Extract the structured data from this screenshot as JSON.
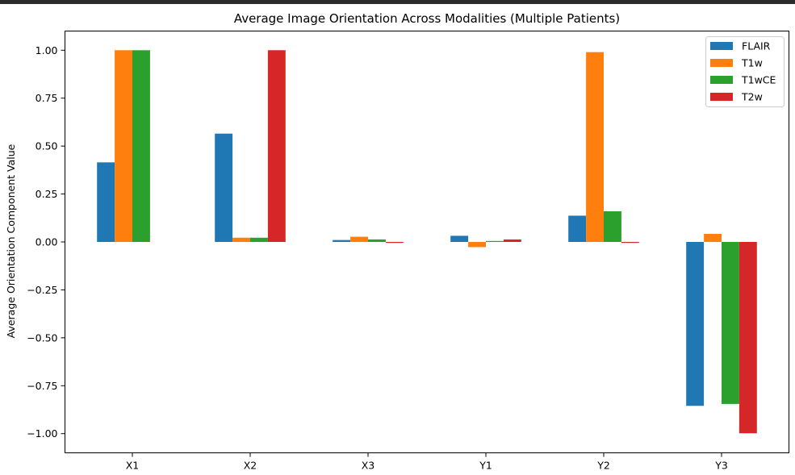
{
  "chart_data": {
    "type": "bar",
    "title": "Average Image Orientation Across Modalities (Multiple Patients)",
    "xlabel": "",
    "ylabel": "Average Orientation Component Value",
    "categories": [
      "X1",
      "X2",
      "X3",
      "Y1",
      "Y2",
      "Y3"
    ],
    "series": [
      {
        "name": "FLAIR",
        "color": "#1f77b4",
        "values": [
          0.415,
          0.565,
          0.01,
          0.032,
          0.137,
          -0.855
        ]
      },
      {
        "name": "T1w",
        "color": "#ff7f0e",
        "values": [
          1.0,
          0.022,
          0.027,
          -0.027,
          0.99,
          0.042
        ]
      },
      {
        "name": "T1wCE",
        "color": "#2ca02c",
        "values": [
          1.0,
          0.022,
          0.013,
          0.005,
          0.16,
          -0.845
        ]
      },
      {
        "name": "T2w",
        "color": "#d62728",
        "values": [
          0.0,
          1.0,
          -0.005,
          0.013,
          -0.005,
          -0.998
        ]
      }
    ],
    "ylim": [
      -1.1,
      1.1
    ],
    "yticks": [
      1.0,
      0.75,
      0.5,
      0.25,
      0.0,
      -0.25,
      -0.5,
      -0.75,
      -1.0
    ],
    "ytick_labels": [
      "1.00",
      "0.75",
      "0.50",
      "0.25",
      "0.00",
      "−0.25",
      "−0.50",
      "−0.75",
      "−1.00"
    ],
    "legend_position": "top-right",
    "grid": false
  }
}
